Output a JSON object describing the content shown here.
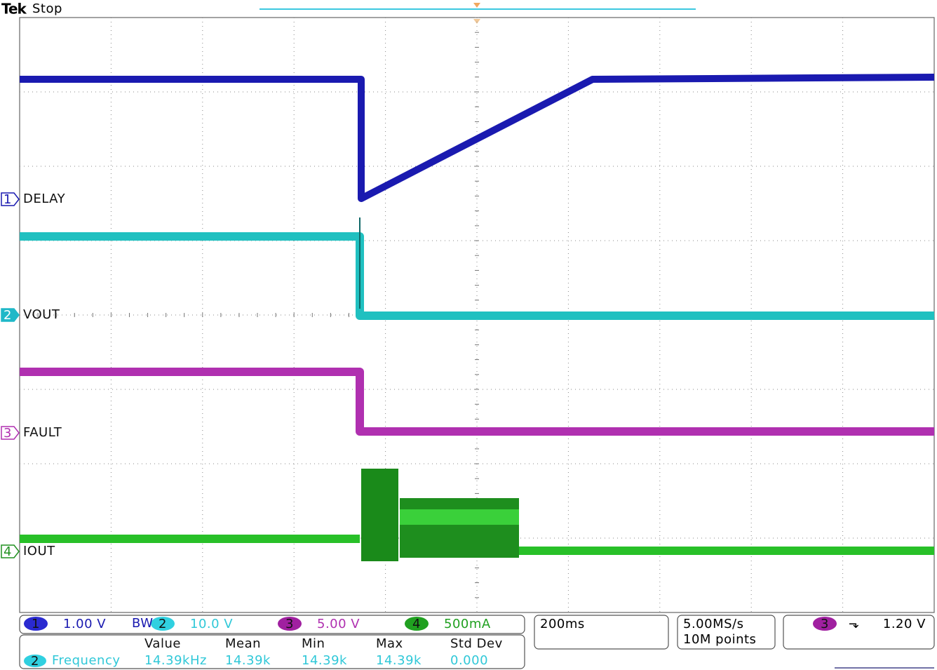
{
  "header": {
    "brand": "Tek",
    "state": "Stop"
  },
  "channels": [
    {
      "number": "1",
      "label": "DELAY",
      "scale": "1.00 V"
    },
    {
      "number": "2",
      "label": "VOUT",
      "scale": "10.0 V"
    },
    {
      "number": "3",
      "label": "FAULT",
      "scale": "5.00 V"
    },
    {
      "number": "4",
      "label": "IOUT",
      "scale": "500mA"
    }
  ],
  "bandwidth": "BW",
  "timebase": "200ms",
  "acquisition": {
    "rate": "5.00MS/s",
    "points": "10M points"
  },
  "trigger": {
    "source": "3",
    "level": "1.20 V"
  },
  "measurements": {
    "columns": [
      "Value",
      "Mean",
      "Min",
      "Max",
      "Std Dev"
    ],
    "rows": [
      {
        "source": "2",
        "name": "Frequency",
        "values": [
          "14.39kHz",
          "14.39k",
          "14.39k",
          "14.39k",
          "0.000"
        ]
      }
    ]
  }
}
